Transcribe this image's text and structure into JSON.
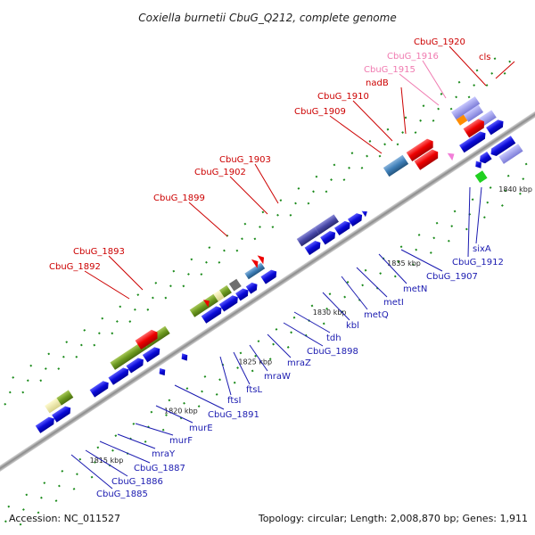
{
  "title": "Coxiella burnetii CbuG_Q212, complete genome",
  "accession": "Accession: NC_011527",
  "topology": "Topology: circular; Length: 2,008,870 bp; Genes: 1,911",
  "colors": {
    "backbone": "#9a9a9a",
    "forward_gene": "#1010e0",
    "forward_label": "#cc0000",
    "reverse_label": "#1a1ab0",
    "pink_label": "#f07ab0",
    "tick": "#1a8a1a"
  },
  "kbp_marks": [
    "1815 kbp",
    "1820 kbp",
    "1825 kbp",
    "1830 kbp",
    "1835 kbp",
    "1840 kbp"
  ],
  "top_labels": [
    "CbuG_1892",
    "CbuG_1893",
    "CbuG_1899",
    "CbuG_1902",
    "CbuG_1903",
    "CbuG_1909",
    "CbuG_1910",
    "nadB",
    "CbuG_1915",
    "CbuG_1916",
    "CbuG_1920",
    "cls"
  ],
  "bottom_labels": [
    "CbuG_1885",
    "CbuG_1886",
    "CbuG_1887",
    "mraY",
    "murF",
    "murE",
    "CbuG_1891",
    "ftsI",
    "ftsL",
    "mraW",
    "mraZ",
    "CbuG_1898",
    "tdh",
    "kbl",
    "metQ",
    "metI",
    "metN",
    "CbuG_1907",
    "CbuG_1912",
    "sixA"
  ]
}
